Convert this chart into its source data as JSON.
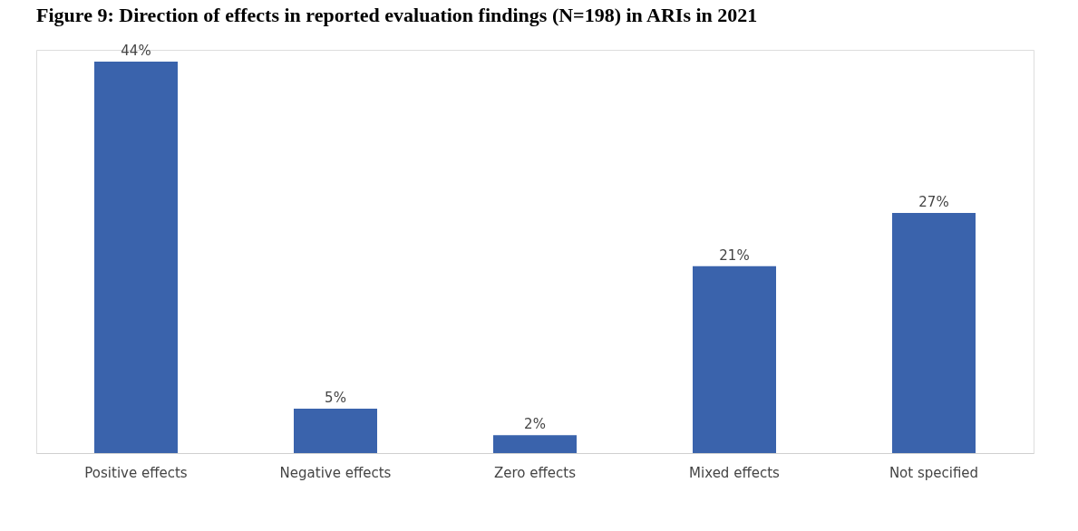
{
  "chart_data": {
    "type": "bar",
    "title": "Figure 9: Direction of effects in reported evaluation findings (N=198) in ARIs in 2021",
    "categories": [
      "Positive effects",
      "Negative effects",
      "Zero effects",
      "Mixed effects",
      "Not specified"
    ],
    "values": [
      44,
      5,
      2,
      21,
      27
    ],
    "color": "#3a63ac",
    "data_labels": true,
    "value_labels": [
      "44%",
      "5%",
      "2%",
      "21%",
      "27%"
    ],
    "grid": false
  }
}
